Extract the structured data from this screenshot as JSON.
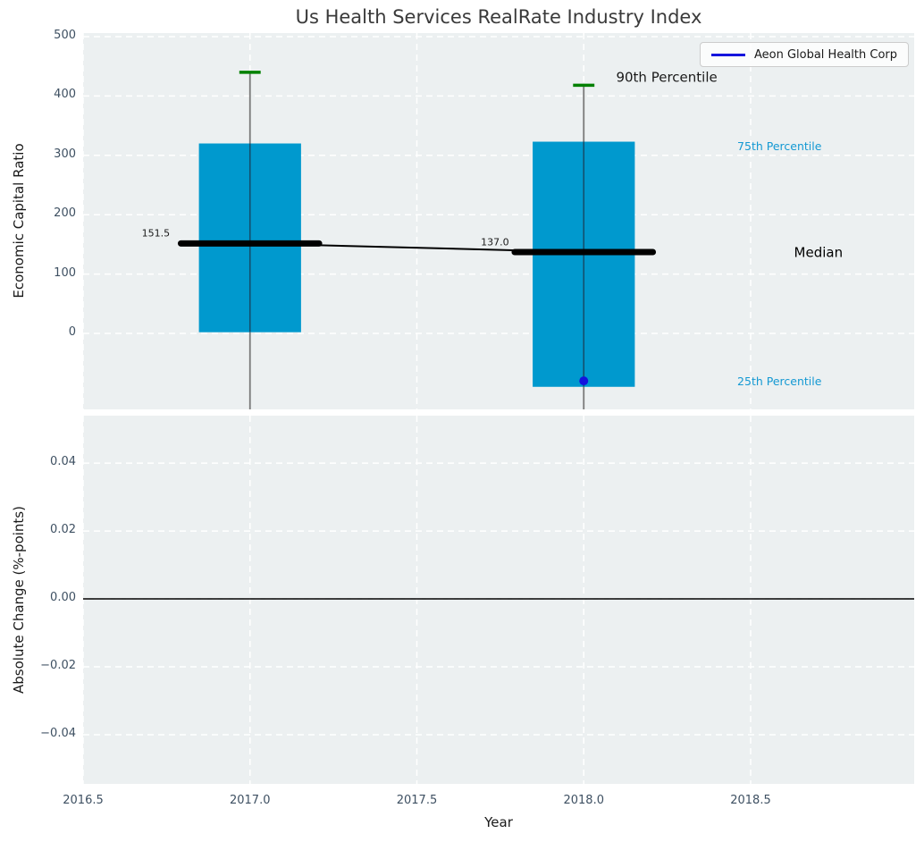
{
  "colors": {
    "bar": "#0099ce",
    "whisker": "#7a7a7a",
    "whisker_in_bar": "#14506e",
    "cap": "#008000",
    "median": "#000000",
    "company": "#1414dd",
    "percentile_text": "#1499d3",
    "grid": "#ffffff",
    "plot_bg": "#ecf0f1",
    "tick_text": "#3e5062",
    "title_text": "#3a3a3a",
    "zero_line": "#000000"
  },
  "chart_data": [
    {
      "id": "economic-capital-ratio",
      "type": "box",
      "title": "Us Health Services RealRate Industry Index",
      "ylabel": "Economic Capital Ratio",
      "ylim": [
        -128,
        506
      ],
      "xlim": [
        2016.5,
        2018.99
      ],
      "grid": true,
      "yticks": {
        "values": [
          500,
          400,
          300,
          200,
          100,
          0
        ],
        "labels": [
          "500",
          "400",
          "300",
          "200",
          "100",
          "0"
        ]
      },
      "xgrid_at": [
        2016.5,
        2017.0,
        2017.5,
        2018.0,
        2018.5
      ],
      "boxes": [
        {
          "x": 2017.0,
          "q25": 2,
          "q75": 320,
          "median": 151.5,
          "whisker_top": 440,
          "whisker_bottom": -128
        },
        {
          "x": 2018.0,
          "q25": -90,
          "q75": 323,
          "median": 137.0,
          "whisker_top": 418,
          "whisker_bottom": -128
        }
      ],
      "box_halfwidth": 0.153,
      "median_halfwidth": 0.207,
      "cap_halfwidth": 0.032,
      "median_trend": [
        [
          2017.0,
          151.5
        ],
        [
          2018.0,
          137.0
        ]
      ],
      "company_point": {
        "name": "Aeon Global Health Corp",
        "x": 2018.0,
        "y": -80
      },
      "legend": {
        "label": "Aeon Global Health Corp",
        "position": "upper right"
      },
      "annotations": [
        {
          "text": "90th Percentile",
          "x": 2018.097,
          "y": 431,
          "color": "#1a1a1a",
          "size": 15,
          "anchor": "start"
        },
        {
          "text": "75th Percentile",
          "x": 2018.46,
          "y": 315,
          "color": "#1499d3",
          "size": 12.5,
          "anchor": "start"
        },
        {
          "text": "Median",
          "x": 2018.63,
          "y": 136,
          "color": "#000000",
          "size": 15,
          "anchor": "start"
        },
        {
          "text": "25th Percentile",
          "x": 2018.46,
          "y": -81,
          "color": "#1499d3",
          "size": 12.5,
          "anchor": "start"
        },
        {
          "text": "151.5",
          "x": 2016.76,
          "y": 168,
          "color": "#1a1a1a",
          "size": 11,
          "anchor": "end"
        },
        {
          "text": "137.0",
          "x": 2017.776,
          "y": 154,
          "color": "#1a1a1a",
          "size": 11,
          "anchor": "end"
        }
      ]
    },
    {
      "id": "absolute-change",
      "type": "bar",
      "ylabel": "Absolute Change (%-points)",
      "xlabel": "Year",
      "ylim": [
        -0.0545,
        0.054
      ],
      "xlim": [
        2016.5,
        2018.99
      ],
      "grid": true,
      "yticks": {
        "values": [
          0.04,
          0.02,
          0.0,
          -0.02,
          -0.04
        ],
        "labels": [
          "0.04",
          "0.02",
          "0.00",
          "−0.02",
          "−0.04"
        ]
      },
      "xticks": {
        "values": [
          2016.5,
          2017.0,
          2017.5,
          2018.0,
          2018.5
        ],
        "labels": [
          "2016.5",
          "2017.0",
          "2017.5",
          "2018.0",
          "2018.5"
        ]
      },
      "zero_line": 0.0,
      "categories": [
        2017.0,
        2018.0
      ],
      "values": [
        0.0,
        0.0
      ]
    }
  ]
}
